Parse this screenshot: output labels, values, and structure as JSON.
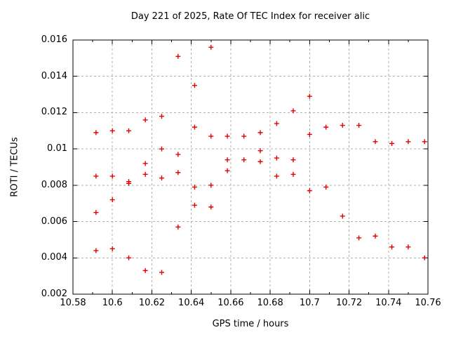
{
  "chart_data": {
    "type": "scatter",
    "title": "Day 221 of 2025, Rate Of TEC Index for receiver alic",
    "xlabel": "GPS time / hours",
    "ylabel": "ROTI / TECUs",
    "xlim": [
      10.58,
      10.76
    ],
    "ylim": [
      0.002,
      0.016
    ],
    "grid": true,
    "legend": "none",
    "background_color": "#ffffff",
    "frame_color": "#000000",
    "grid_color": "#b0b0b0",
    "marker": {
      "shape": "plus",
      "color": "#e60000",
      "size": 7
    },
    "x_ticks": [
      {
        "v": 10.58,
        "label": "10.58"
      },
      {
        "v": 10.6,
        "label": "10.6"
      },
      {
        "v": 10.62,
        "label": "10.62"
      },
      {
        "v": 10.64,
        "label": "10.64"
      },
      {
        "v": 10.66,
        "label": "10.66"
      },
      {
        "v": 10.68,
        "label": "10.68"
      },
      {
        "v": 10.7,
        "label": "10.7"
      },
      {
        "v": 10.72,
        "label": "10.72"
      },
      {
        "v": 10.74,
        "label": "10.74"
      },
      {
        "v": 10.76,
        "label": "10.76"
      }
    ],
    "x_minor_ticks": [
      10.59,
      10.61,
      10.63,
      10.65,
      10.67,
      10.69,
      10.71,
      10.73,
      10.75
    ],
    "y_ticks": [
      {
        "v": 0.002,
        "label": "0.002"
      },
      {
        "v": 0.004,
        "label": "0.004"
      },
      {
        "v": 0.006,
        "label": "0.006"
      },
      {
        "v": 0.008,
        "label": "0.008"
      },
      {
        "v": 0.01,
        "label": "0.01"
      },
      {
        "v": 0.012,
        "label": "0.012"
      },
      {
        "v": 0.014,
        "label": "0.014"
      },
      {
        "v": 0.016,
        "label": "0.016"
      }
    ],
    "points": [
      [
        10.5917,
        0.0109
      ],
      [
        10.5917,
        0.0085
      ],
      [
        10.5917,
        0.0065
      ],
      [
        10.5917,
        0.0044
      ],
      [
        10.6,
        0.011
      ],
      [
        10.6,
        0.0085
      ],
      [
        10.6,
        0.0072
      ],
      [
        10.6,
        0.0045
      ],
      [
        10.6083,
        0.011
      ],
      [
        10.6083,
        0.0082
      ],
      [
        10.6083,
        0.0081
      ],
      [
        10.6083,
        0.004
      ],
      [
        10.6167,
        0.0116
      ],
      [
        10.6167,
        0.0092
      ],
      [
        10.6167,
        0.0086
      ],
      [
        10.6167,
        0.0033
      ],
      [
        10.625,
        0.0118
      ],
      [
        10.625,
        0.01
      ],
      [
        10.625,
        0.0084
      ],
      [
        10.625,
        0.0032
      ],
      [
        10.6333,
        0.0151
      ],
      [
        10.6333,
        0.0097
      ],
      [
        10.6333,
        0.0087
      ],
      [
        10.6333,
        0.0057
      ],
      [
        10.6417,
        0.0135
      ],
      [
        10.6417,
        0.0112
      ],
      [
        10.6417,
        0.0079
      ],
      [
        10.6417,
        0.0069
      ],
      [
        10.65,
        0.0156
      ],
      [
        10.65,
        0.0107
      ],
      [
        10.65,
        0.008
      ],
      [
        10.65,
        0.0068
      ],
      [
        10.6583,
        0.0107
      ],
      [
        10.6583,
        0.0094
      ],
      [
        10.6583,
        0.0088
      ],
      [
        10.6667,
        0.0107
      ],
      [
        10.6667,
        0.0094
      ],
      [
        10.675,
        0.0109
      ],
      [
        10.675,
        0.0099
      ],
      [
        10.675,
        0.0093
      ],
      [
        10.6833,
        0.0114
      ],
      [
        10.6833,
        0.0095
      ],
      [
        10.6833,
        0.0085
      ],
      [
        10.6917,
        0.0121
      ],
      [
        10.6917,
        0.0094
      ],
      [
        10.6917,
        0.0086
      ],
      [
        10.7,
        0.0129
      ],
      [
        10.7,
        0.0108
      ],
      [
        10.7,
        0.0077
      ],
      [
        10.7083,
        0.0112
      ],
      [
        10.7083,
        0.0079
      ],
      [
        10.7167,
        0.0113
      ],
      [
        10.7167,
        0.0063
      ],
      [
        10.725,
        0.0113
      ],
      [
        10.725,
        0.0051
      ],
      [
        10.7333,
        0.0104
      ],
      [
        10.7333,
        0.0052
      ],
      [
        10.7417,
        0.0103
      ],
      [
        10.7417,
        0.0046
      ],
      [
        10.75,
        0.0104
      ],
      [
        10.75,
        0.0046
      ],
      [
        10.7583,
        0.0104
      ],
      [
        10.7583,
        0.004
      ]
    ]
  }
}
